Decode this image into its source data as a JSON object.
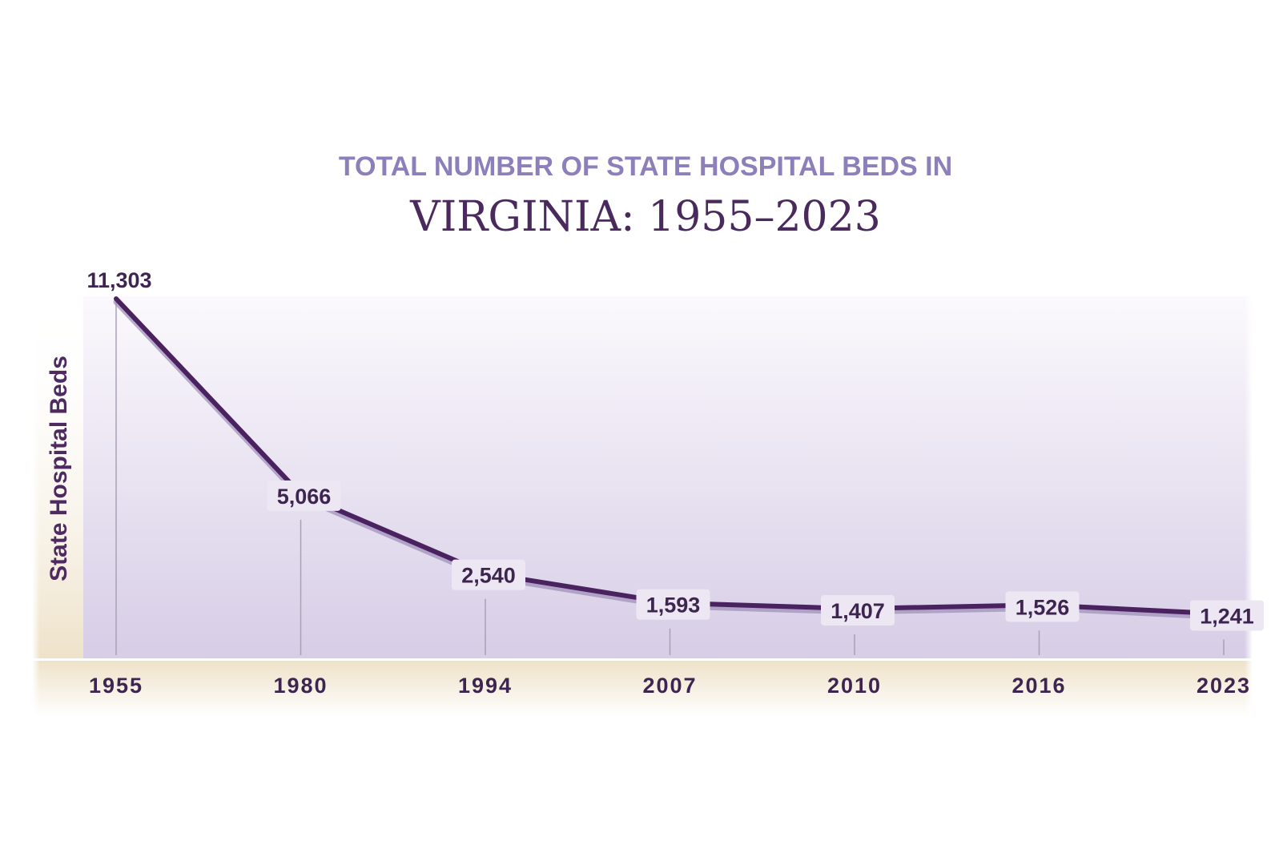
{
  "chart_data": {
    "type": "line",
    "subtitle": "TOTAL NUMBER OF STATE HOSPITAL BEDS IN",
    "title": "VIRGINIA: 1955–2023",
    "ylabel": "State Hospital Beds",
    "xlabel": "",
    "categories": [
      "1955",
      "1980",
      "1994",
      "2007",
      "2010",
      "2016",
      "2023"
    ],
    "values": [
      11303,
      5066,
      2540,
      1593,
      1407,
      1526,
      1241
    ],
    "data_labels": [
      "11,303",
      "5,066",
      "2,540",
      "1,593",
      "1,407",
      "1,526",
      "1,241"
    ],
    "ylim": [
      0,
      11303
    ],
    "grid": false,
    "legend": "none",
    "colors": {
      "line": "#4a2260",
      "line_shadow": "#9d8bb8",
      "plot_top": "#fbf9fd",
      "plot_bottom": "#d7cde6",
      "axis_band": "#eee2c9",
      "title": "#4a2a5c",
      "subtitle": "#8c7fba"
    }
  }
}
